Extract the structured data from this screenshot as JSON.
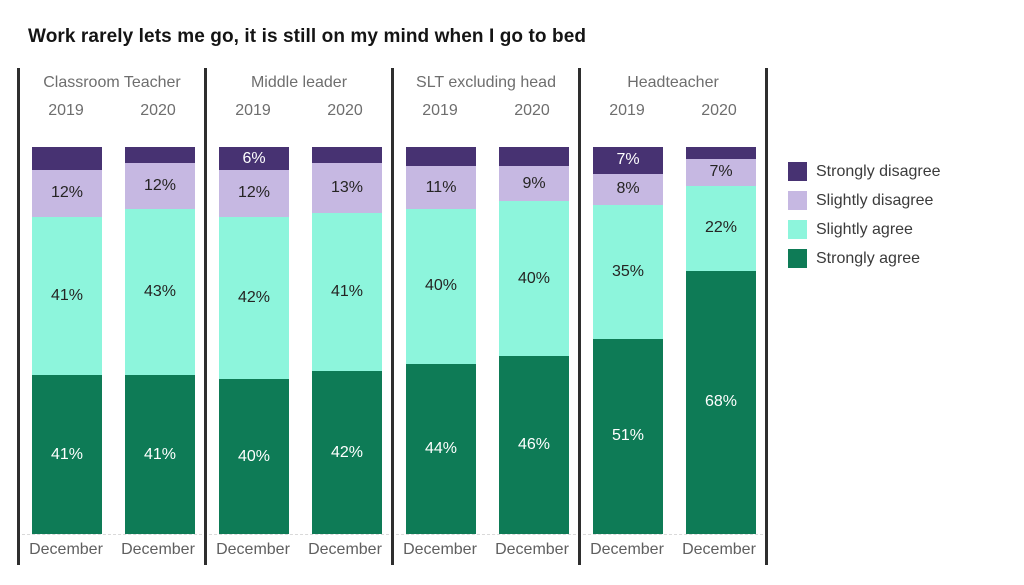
{
  "title": "Work rarely lets me go, it is still on my mind when I go to bed",
  "legend": [
    {
      "key": "strongly_disagree",
      "label": "Strongly disagree",
      "color": "#473272",
      "text_color": "#ffffff"
    },
    {
      "key": "slightly_disagree",
      "label": "Slightly disagree",
      "color": "#c6b8e2",
      "text_color": "#252423"
    },
    {
      "key": "slightly_agree",
      "label": "Slightly agree",
      "color": "#8df5dc",
      "text_color": "#252423"
    },
    {
      "key": "strongly_agree",
      "label": "Strongly agree",
      "color": "#0e7b56",
      "text_color": "#ffffff"
    }
  ],
  "chart_data": {
    "type": "bar",
    "subtype": "stacked-100-percent",
    "title": "Work rarely lets me go, it is still on my mind when I go to bed",
    "x_category_label": "December",
    "ylim": [
      0,
      100
    ],
    "grid": false,
    "legend_position": "right",
    "groups": [
      {
        "name": "Classroom Teacher",
        "bars": [
          {
            "year": "2019",
            "month": "December",
            "segments": [
              {
                "key": "strongly_agree",
                "value": 41,
                "label": "41%"
              },
              {
                "key": "slightly_agree",
                "value": 41,
                "label": "41%"
              },
              {
                "key": "slightly_disagree",
                "value": 12,
                "label": "12%"
              },
              {
                "key": "strongly_disagree",
                "value": 6,
                "label": ""
              }
            ]
          },
          {
            "year": "2020",
            "month": "December",
            "segments": [
              {
                "key": "strongly_agree",
                "value": 41,
                "label": "41%"
              },
              {
                "key": "slightly_agree",
                "value": 43,
                "label": "43%"
              },
              {
                "key": "slightly_disagree",
                "value": 12,
                "label": "12%"
              },
              {
                "key": "strongly_disagree",
                "value": 4,
                "label": ""
              }
            ]
          }
        ]
      },
      {
        "name": "Middle leader",
        "bars": [
          {
            "year": "2019",
            "month": "December",
            "segments": [
              {
                "key": "strongly_agree",
                "value": 40,
                "label": "40%"
              },
              {
                "key": "slightly_agree",
                "value": 42,
                "label": "42%"
              },
              {
                "key": "slightly_disagree",
                "value": 12,
                "label": "12%"
              },
              {
                "key": "strongly_disagree",
                "value": 6,
                "label": "6%"
              }
            ]
          },
          {
            "year": "2020",
            "month": "December",
            "segments": [
              {
                "key": "strongly_agree",
                "value": 42,
                "label": "42%"
              },
              {
                "key": "slightly_agree",
                "value": 41,
                "label": "41%"
              },
              {
                "key": "slightly_disagree",
                "value": 13,
                "label": "13%"
              },
              {
                "key": "strongly_disagree",
                "value": 4,
                "label": ""
              }
            ]
          }
        ]
      },
      {
        "name": "SLT excluding head",
        "bars": [
          {
            "year": "2019",
            "month": "December",
            "segments": [
              {
                "key": "strongly_agree",
                "value": 44,
                "label": "44%"
              },
              {
                "key": "slightly_agree",
                "value": 40,
                "label": "40%"
              },
              {
                "key": "slightly_disagree",
                "value": 11,
                "label": "11%"
              },
              {
                "key": "strongly_disagree",
                "value": 5,
                "label": ""
              }
            ]
          },
          {
            "year": "2020",
            "month": "December",
            "segments": [
              {
                "key": "strongly_agree",
                "value": 46,
                "label": "46%"
              },
              {
                "key": "slightly_agree",
                "value": 40,
                "label": "40%"
              },
              {
                "key": "slightly_disagree",
                "value": 9,
                "label": "9%"
              },
              {
                "key": "strongly_disagree",
                "value": 5,
                "label": ""
              }
            ]
          }
        ]
      },
      {
        "name": "Headteacher",
        "bars": [
          {
            "year": "2019",
            "month": "December",
            "segments": [
              {
                "key": "strongly_agree",
                "value": 51,
                "label": "51%"
              },
              {
                "key": "slightly_agree",
                "value": 35,
                "label": "35%"
              },
              {
                "key": "slightly_disagree",
                "value": 8,
                "label": "8%"
              },
              {
                "key": "strongly_disagree",
                "value": 7,
                "label": "7%"
              }
            ]
          },
          {
            "year": "2020",
            "month": "December",
            "segments": [
              {
                "key": "strongly_agree",
                "value": 68,
                "label": "68%"
              },
              {
                "key": "slightly_agree",
                "value": 22,
                "label": "22%"
              },
              {
                "key": "slightly_disagree",
                "value": 7,
                "label": "7%"
              },
              {
                "key": "strongly_disagree",
                "value": 3,
                "label": ""
              }
            ]
          }
        ]
      }
    ]
  }
}
